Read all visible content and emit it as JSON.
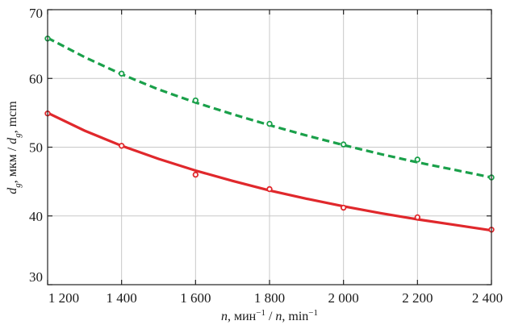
{
  "chart_data": {
    "type": "line",
    "title": "",
    "xlabel_prefix": "n",
    "xlabel_text": ", мин",
    "xlabel_sup": "−1",
    "xlabel_mid": " / ",
    "xlabel_prefix2": "n",
    "xlabel_text2": ", min",
    "xlabel_sup2": "−1",
    "ylabel_var": "d",
    "ylabel_sub": "g",
    "ylabel_text": ", мкм / ",
    "ylabel_var2": "d",
    "ylabel_sub2": "g",
    "ylabel_text2": ", mcm",
    "xlim": [
      1200,
      2400
    ],
    "ylim": [
      30,
      70
    ],
    "xticks": [
      1200,
      1400,
      1600,
      1800,
      2000,
      2200,
      2400
    ],
    "xtick_labels": [
      "1 200",
      "1 400",
      "1 600",
      "1 800",
      "2 000",
      "2 200",
      "2 400"
    ],
    "yticks": [
      30,
      40,
      50,
      60,
      70
    ],
    "ytick_labels": [
      "30",
      "40",
      "50",
      "60",
      "70"
    ],
    "grid": true,
    "series": [
      {
        "style": "dashed",
        "color": "#1aa04a",
        "points": [
          [
            1200,
            65.8
          ],
          [
            1400,
            60.7
          ],
          [
            1600,
            56.8
          ],
          [
            1800,
            53.4
          ],
          [
            2000,
            50.4
          ],
          [
            2200,
            48.2
          ],
          [
            2400,
            45.6
          ]
        ],
        "curve": [
          [
            1200,
            65.9
          ],
          [
            1300,
            63.1
          ],
          [
            1400,
            60.6
          ],
          [
            1500,
            58.4
          ],
          [
            1600,
            56.5
          ],
          [
            1700,
            54.8
          ],
          [
            1800,
            53.2
          ],
          [
            1900,
            51.7
          ],
          [
            2000,
            50.3
          ],
          [
            2100,
            49.0
          ],
          [
            2200,
            47.8
          ],
          [
            2300,
            46.7
          ],
          [
            2400,
            45.6
          ]
        ]
      },
      {
        "style": "solid",
        "color": "#e0282c",
        "points": [
          [
            1200,
            54.9
          ],
          [
            1400,
            50.2
          ],
          [
            1600,
            46.0
          ],
          [
            1800,
            43.9
          ],
          [
            2000,
            41.2
          ],
          [
            2200,
            39.8
          ],
          [
            2400,
            38.0
          ]
        ],
        "curve": [
          [
            1200,
            55.0
          ],
          [
            1300,
            52.4
          ],
          [
            1400,
            50.2
          ],
          [
            1500,
            48.3
          ],
          [
            1600,
            46.6
          ],
          [
            1700,
            45.1
          ],
          [
            1800,
            43.7
          ],
          [
            1900,
            42.5
          ],
          [
            2000,
            41.4
          ],
          [
            2100,
            40.4
          ],
          [
            2200,
            39.5
          ],
          [
            2300,
            38.7
          ],
          [
            2400,
            37.9
          ]
        ]
      }
    ]
  }
}
